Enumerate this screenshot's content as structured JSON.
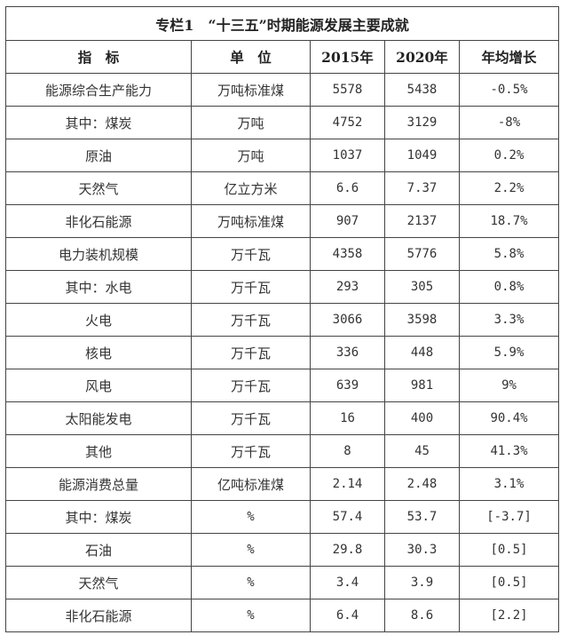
{
  "title": "专栏1　“十三五”时期能源发展主要成就",
  "headers": [
    "指　标",
    "单　位",
    "2015年",
    "2020年",
    "年均增长"
  ],
  "rows": [
    [
      "能源综合生产能力",
      "万吨标准煤",
      "5578",
      "5438",
      "-0.5%"
    ],
    [
      "其中：煤炭",
      "万吨",
      "4752",
      "3129",
      "-8%"
    ],
    [
      "原油",
      "万吨",
      "1037",
      "1049",
      "0.2%"
    ],
    [
      "天然气",
      "亿立方米",
      "6.6",
      "7.37",
      "2.2%"
    ],
    [
      "非化石能源",
      "万吨标准煤",
      "907",
      "2137",
      "18.7%"
    ],
    [
      "电力装机规模",
      "万千瓦",
      "4358",
      "5776",
      "5.8%"
    ],
    [
      "其中：水电",
      "万千瓦",
      "293",
      "305",
      "0.8%"
    ],
    [
      "火电",
      "万千瓦",
      "3066",
      "3598",
      "3.3%"
    ],
    [
      "核电",
      "万千瓦",
      "336",
      "448",
      "5.9%"
    ],
    [
      "风电",
      "万千瓦",
      "639",
      "981",
      "9%"
    ],
    [
      "太阳能发电",
      "万千瓦",
      "16",
      "400",
      "90.4%"
    ],
    [
      "其他",
      "万千瓦",
      "8",
      "45",
      "41.3%"
    ],
    [
      "能源消费总量",
      "亿吨标准煤",
      "2.14",
      "2.48",
      "3.1%"
    ],
    [
      "其中：煤炭",
      "%",
      "57.4",
      "53.7",
      "[-3.7]"
    ],
    [
      "石油",
      "%",
      "29.8",
      "30.3",
      "[0.5]"
    ],
    [
      "天然气",
      "%",
      "3.4",
      "3.9",
      "[0.5]"
    ],
    [
      "非化石能源",
      "%",
      "6.4",
      "8.6",
      "[2.2]"
    ]
  ]
}
